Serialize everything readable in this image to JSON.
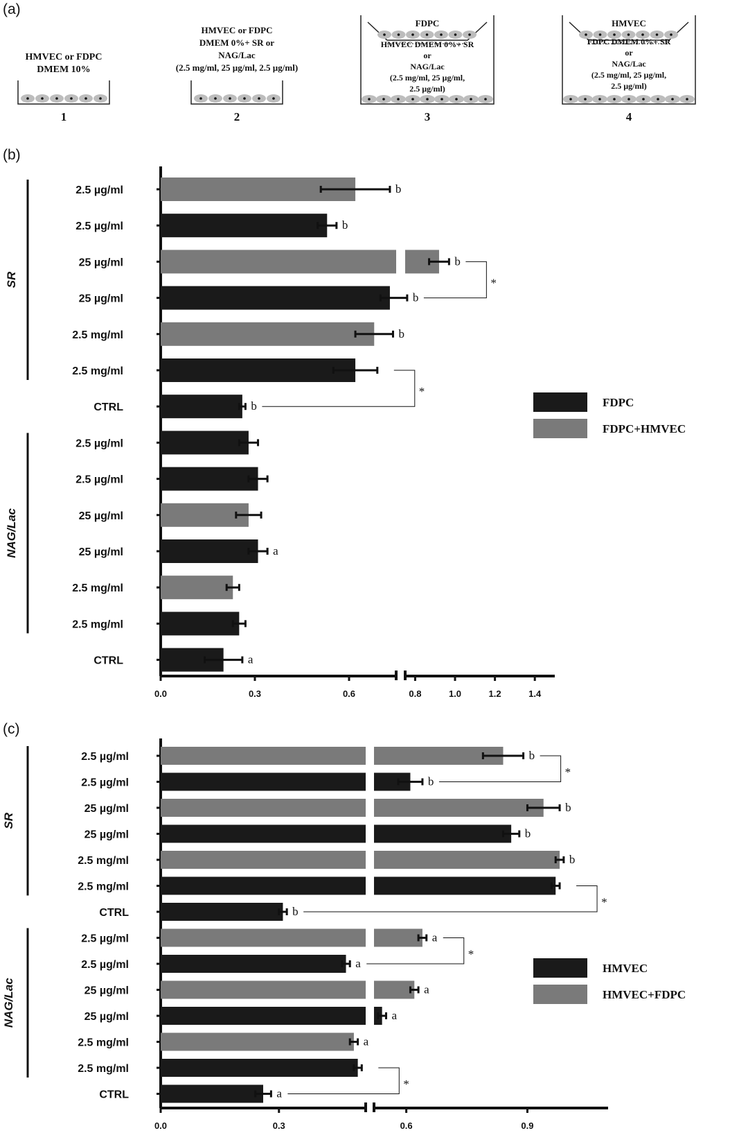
{
  "panels": {
    "a": "(a)",
    "b": "(b)",
    "c": "(c)"
  },
  "schematic": [
    {
      "num": "1",
      "top_label": "",
      "text_lines": [
        "HMVEC or FDPC",
        "DMEM 10%"
      ],
      "vessel": "well"
    },
    {
      "num": "2",
      "top_label": "",
      "text_lines": [
        "HMVEC or FDPC",
        "DMEM 0%+ SR or",
        "NAG/Lac",
        "(2.5 mg/ml, 25 µg/ml, 2.5 µg/ml)"
      ],
      "vessel": "well"
    },
    {
      "num": "3",
      "top_label": "FDPC",
      "text_lines": [
        "HMVEC DMEM 0%+ SR",
        "or",
        "NAG/Lac",
        "(2.5 mg/ml, 25 µg/ml,",
        "2.5 µg/ml)"
      ],
      "vessel": "transwell"
    },
    {
      "num": "4",
      "top_label": "HMVEC",
      "text_lines": [
        "FDPC DMEM 0%+ SR",
        "or",
        "NAG/Lac",
        "(2.5 mg/ml, 25 µg/ml,",
        "2.5 µg/ml)"
      ],
      "vessel": "transwell"
    }
  ],
  "chart_data": [
    {
      "type": "bar",
      "orientation": "horizontal",
      "panel": "(b)",
      "categories": [
        "2.5 µg/ml",
        "2.5 µg/ml",
        "25 µg/ml",
        "25 µg/ml",
        "2.5 mg/ml",
        "2.5 mg/ml",
        "CTRL",
        "2.5 µg/ml",
        "2.5 µg/ml",
        "25 µg/ml",
        "25 µg/ml",
        "2.5 mg/ml",
        "2.5 mg/ml",
        "CTRL"
      ],
      "groups": [
        {
          "name": "SR",
          "rows": [
            0,
            5
          ]
        },
        {
          "name": "NAG/Lac",
          "rows": [
            7,
            12
          ]
        }
      ],
      "values": [
        0.62,
        0.53,
        0.92,
        0.73,
        0.68,
        0.62,
        0.26,
        0.28,
        0.31,
        0.28,
        0.31,
        0.23,
        0.25,
        0.2
      ],
      "errors": [
        0.11,
        0.03,
        0.05,
        0.03,
        0.06,
        0.07,
        0.01,
        0.03,
        0.03,
        0.04,
        0.03,
        0.02,
        0.02,
        0.06
      ],
      "series_index": [
        1,
        0,
        1,
        0,
        1,
        0,
        0,
        0,
        0,
        1,
        0,
        1,
        0,
        0
      ],
      "annotations": [
        "b",
        "b",
        "b",
        "b",
        "b",
        "",
        "b",
        "",
        "",
        "",
        "a",
        "",
        "",
        "a"
      ],
      "significance": [
        {
          "from": 2,
          "to": 3,
          "label": "*"
        },
        {
          "from": 5,
          "to": 6,
          "label": "*"
        }
      ],
      "series": [
        {
          "name": "FDPC",
          "color": "#1a1a1a"
        },
        {
          "name": "FDPC+HMVEC",
          "color": "#7a7a7a"
        }
      ],
      "x_axis": {
        "segments": [
          {
            "min": 0,
            "max": 0.75
          },
          {
            "min": 0.75,
            "max": 1.5
          }
        ],
        "ticks": [
          "0.0",
          "0.3",
          "0.6",
          "0.8",
          "1.0",
          "1.2",
          "1.4"
        ]
      },
      "legend": "right"
    },
    {
      "type": "bar",
      "orientation": "horizontal",
      "panel": "(c)",
      "categories": [
        "2.5 µg/ml",
        "2.5 µg/ml",
        "25 µg/ml",
        "25 µg/ml",
        "2.5 mg/ml",
        "2.5 mg/ml",
        "CTRL",
        "2.5 µg/ml",
        "2.5 µg/ml",
        "25 µg/ml",
        "25 µg/ml",
        "2.5 mg/ml",
        "2.5 mg/ml",
        "CTRL"
      ],
      "groups": [
        {
          "name": "SR",
          "rows": [
            0,
            5
          ]
        },
        {
          "name": "NAG/Lac",
          "rows": [
            7,
            12
          ]
        }
      ],
      "values": [
        0.84,
        0.61,
        0.94,
        0.86,
        0.98,
        0.97,
        0.31,
        0.64,
        0.47,
        0.62,
        0.54,
        0.49,
        0.5,
        0.26
      ],
      "errors": [
        0.05,
        0.03,
        0.04,
        0.02,
        0.01,
        0.01,
        0.01,
        0.01,
        0.01,
        0.01,
        0.01,
        0.01,
        0.01,
        0.02
      ],
      "series_index": [
        1,
        0,
        1,
        0,
        1,
        0,
        0,
        1,
        0,
        1,
        0,
        1,
        0,
        0
      ],
      "annotations": [
        "b",
        "b",
        "b",
        "b",
        "b",
        "",
        "b",
        "a",
        "a",
        "a",
        "a",
        "a",
        "",
        "a"
      ],
      "significance": [
        {
          "from": 0,
          "to": 1,
          "label": "*"
        },
        {
          "from": 5,
          "to": 6,
          "label": "*"
        },
        {
          "from": 7,
          "to": 8,
          "label": "*"
        },
        {
          "from": 12,
          "to": 13,
          "label": "*"
        }
      ],
      "series": [
        {
          "name": "HMVEC",
          "color": "#1a1a1a"
        },
        {
          "name": "HMVEC+FDPC",
          "color": "#7a7a7a"
        }
      ],
      "x_axis": {
        "segments": [
          {
            "min": 0,
            "max": 0.52
          },
          {
            "min": 0.52,
            "max": 1.1
          }
        ],
        "ticks": [
          "0.0",
          "0.3",
          "0.6",
          "0.9"
        ]
      },
      "legend": "right"
    }
  ]
}
